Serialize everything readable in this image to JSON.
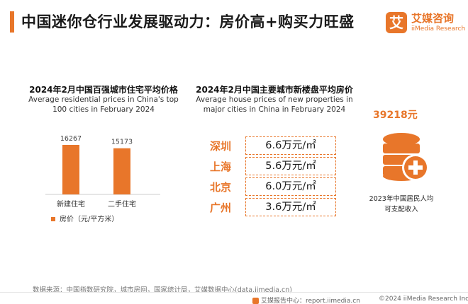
{
  "header": {
    "title": "中国迷你仓行业发展驱动力：房价高+购买力旺盛"
  },
  "brand": {
    "mark": "艾",
    "name_cn": "艾媒咨询",
    "name_en": "iiMedia Research",
    "accent": "#e8762a"
  },
  "left_panel": {
    "title_cn": "2024年2月中国百强城市住宅平均价格",
    "title_en": "Average residential prices in China's top 100 cities in February 2024"
  },
  "chart_data": {
    "type": "bar",
    "categories": [
      "新建住宅",
      "二手住宅"
    ],
    "values": [
      16267,
      15173
    ],
    "data_labels": [
      "16267",
      "15173"
    ],
    "series": [
      {
        "name": "房价（元/平方米）",
        "values": [
          16267,
          15173
        ]
      }
    ],
    "legend": {
      "label": "房价（元/平方米）",
      "position": "bottom"
    },
    "color": "#e8762a",
    "grid": false
  },
  "middle_panel": {
    "title_cn": "2024年2月中国主要城市新楼盘平均房价",
    "title_en": "Average house prices of new properties in major cities in China in February 2024",
    "cities": [
      {
        "name": "深圳",
        "price": "6.6万元/㎡"
      },
      {
        "name": "上海",
        "price": "5.6万元/㎡"
      },
      {
        "name": "北京",
        "price": "6.0万元/㎡"
      },
      {
        "name": "广州",
        "price": "3.6万元/㎡"
      }
    ]
  },
  "right_panel": {
    "value": "39218元",
    "label": "2023年中国居民人均可支配收入",
    "icon": "coins-plus-icon"
  },
  "footer": {
    "source": "数据来源：中国指数研究院，城市房网，国家统计局，艾媒数据中心(data.iimedia.cn)",
    "report_site": "艾媒报告中心：report.iimedia.cn",
    "copyright": "©2024  iiMedia Research  Inc"
  }
}
